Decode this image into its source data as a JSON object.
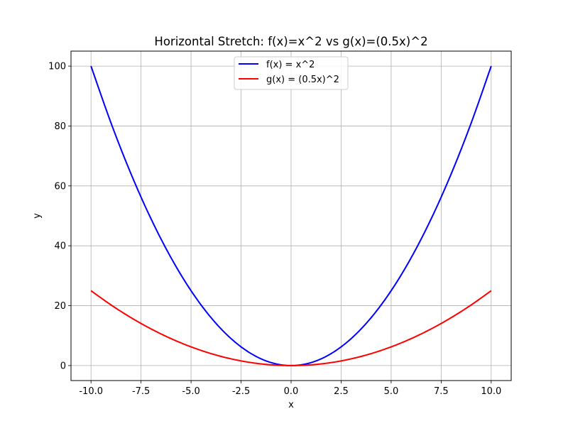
{
  "chart_data": {
    "type": "line",
    "title": "Horizontal Stretch: f(x)=x^2 vs g(x)=(0.5x)^2",
    "xlabel": "x",
    "ylabel": "y",
    "xlim": [
      -11.0,
      11.0
    ],
    "ylim": [
      -5.0,
      105.0
    ],
    "grid": true,
    "legend_position": "top-center",
    "x_ticks": [
      -10.0,
      -7.5,
      -5.0,
      -2.5,
      0.0,
      2.5,
      5.0,
      7.5,
      10.0
    ],
    "x_tick_labels": [
      "-10.0",
      "-7.5",
      "-5.0",
      "-2.5",
      "0.0",
      "2.5",
      "5.0",
      "7.5",
      "10.0"
    ],
    "y_ticks": [
      0,
      20,
      40,
      60,
      80,
      100
    ],
    "y_tick_labels": [
      "0",
      "20",
      "40",
      "60",
      "80",
      "100"
    ],
    "x": [
      -10,
      -9,
      -8,
      -7,
      -6,
      -5,
      -4,
      -3,
      -2,
      -1,
      0,
      1,
      2,
      3,
      4,
      5,
      6,
      7,
      8,
      9,
      10
    ],
    "series": [
      {
        "name": "f(x) = x^2",
        "color": "#0000ff",
        "values": [
          100,
          81,
          64,
          49,
          36,
          25,
          16,
          9,
          4,
          1,
          0,
          1,
          4,
          9,
          16,
          25,
          36,
          49,
          64,
          81,
          100
        ]
      },
      {
        "name": "g(x) = (0.5x)^2",
        "color": "#ff0000",
        "values": [
          25,
          20.25,
          16,
          12.25,
          9,
          6.25,
          4,
          2.25,
          1,
          0.25,
          0,
          0.25,
          1,
          2.25,
          4,
          6.25,
          9,
          12.25,
          16,
          20.25,
          25
        ]
      }
    ]
  }
}
